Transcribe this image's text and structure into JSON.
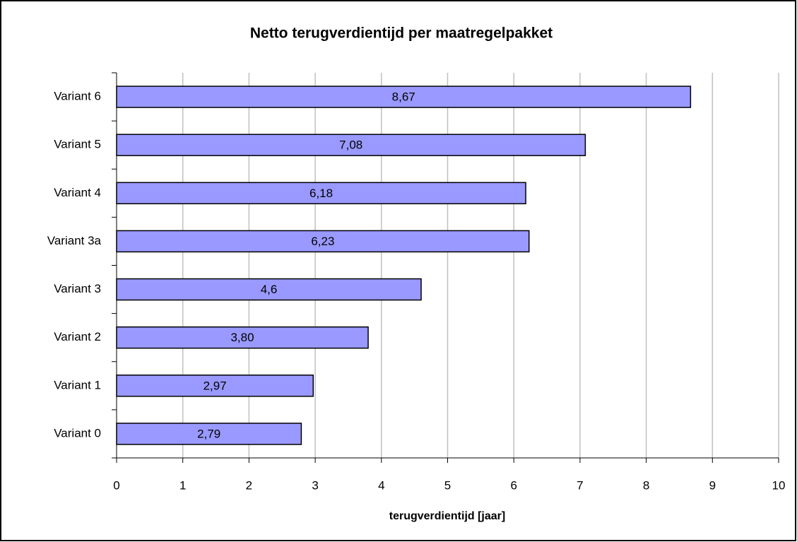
{
  "chart_data": {
    "type": "bar",
    "orientation": "horizontal",
    "title": "Netto terugverdientijd per maatregelpakket",
    "x_label": "terugverdientijd [jaar]",
    "categories": [
      "Variant 0",
      "Variant 1",
      "Variant 2",
      "Variant 3",
      "Variant 3a",
      "Variant 4",
      "Variant 5",
      "Variant 6"
    ],
    "values": [
      2.79,
      2.97,
      3.8,
      4.6,
      6.23,
      6.18,
      7.08,
      8.67
    ],
    "value_labels": [
      "2,79",
      "2,97",
      "3,80",
      "4,6",
      "6,23",
      "6,18",
      "7,08",
      "8,67"
    ],
    "color": "#9999ff",
    "xlim": [
      0,
      10
    ],
    "xticks": [
      0,
      1,
      2,
      3,
      4,
      5,
      6,
      7,
      8,
      9,
      10
    ],
    "grid": true
  }
}
